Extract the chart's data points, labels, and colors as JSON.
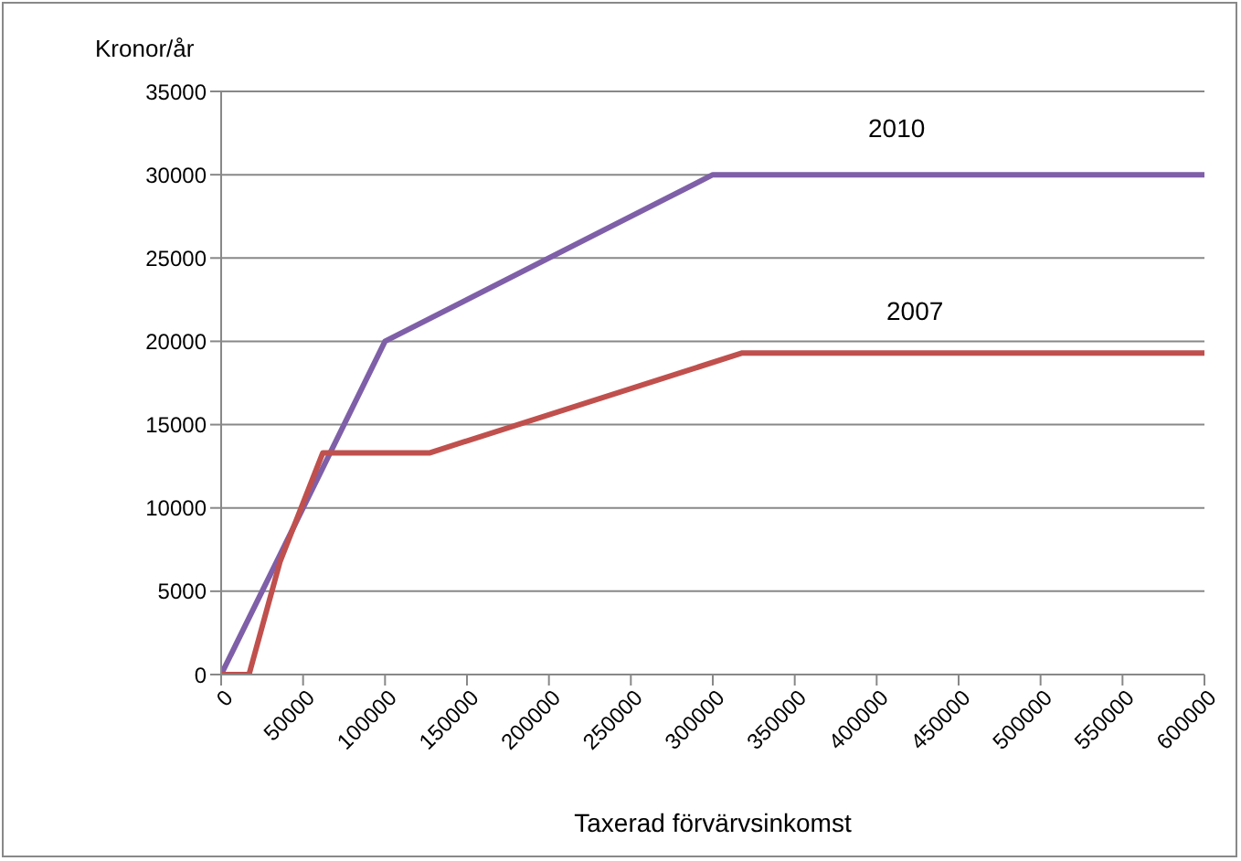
{
  "chart_data": {
    "type": "line",
    "ylabel": "Kronor/år",
    "xlabel": "Taxerad förvärvsinkomst",
    "xlim": [
      0,
      600000
    ],
    "xticks": [
      0,
      50000,
      100000,
      150000,
      200000,
      250000,
      300000,
      350000,
      400000,
      450000,
      500000,
      550000,
      600000
    ],
    "ylim": [
      0,
      35000
    ],
    "yticks": [
      0,
      5000,
      10000,
      15000,
      20000,
      25000,
      30000,
      35000
    ],
    "grid": "y",
    "marker": "none",
    "series": [
      {
        "name": "2010",
        "color": "#7f5fa8",
        "x": [
          0,
          100000,
          300000,
          600000
        ],
        "values": [
          0,
          20000,
          30000,
          30000
        ]
      },
      {
        "name": "2007",
        "color": "#c0504d",
        "x": [
          0,
          17000,
          36000,
          62000,
          127000,
          318000,
          600000
        ],
        "values": [
          0,
          0,
          6800,
          13300,
          13300,
          19300,
          19300
        ]
      }
    ]
  }
}
